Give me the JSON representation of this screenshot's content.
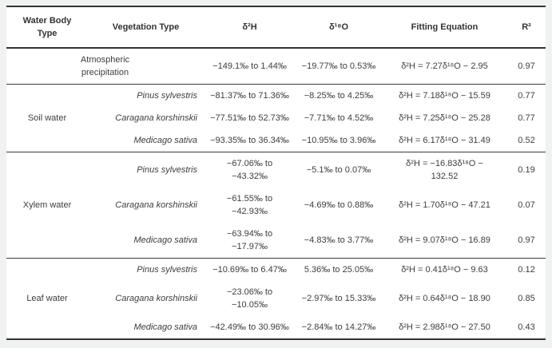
{
  "table": {
    "headers": {
      "water_body": "Water Body\nType",
      "vegetation": "Vegetation Type",
      "d2h": "δ²H",
      "d18o": "δ¹⁸O",
      "equation": "Fitting Equation",
      "r2": "R²"
    },
    "atmospheric": {
      "label": "Atmospheric\nprecipitation",
      "d2h": "−149.1‰ to 1.44‰",
      "d18o": "−19.77‰ to 0.53‰",
      "equation": "δ²H = 7.27δ¹⁸O − 2.95",
      "r2": "0.97"
    },
    "sections": [
      {
        "water_body": "Soil water",
        "rows": [
          {
            "vegetation": "Pinus sylvestris",
            "d2h": "−81.37‰ to 71.36‰",
            "d18o": "−8.25‰ to 4.25‰",
            "equation": "δ²H = 7.18δ¹⁸O − 15.59",
            "r2": "0.77"
          },
          {
            "vegetation": "Caragana korshinskii",
            "d2h": "−77.51‰ to 52.73‰",
            "d18o": "−7.71‰ to 4.52‰",
            "equation": "δ²H = 7.25δ¹⁸O − 25.28",
            "r2": "0.77"
          },
          {
            "vegetation": "Medicago sativa",
            "d2h": "−93.35‰ to 36.34‰",
            "d18o": "−10.95‰ to 3.96‰",
            "equation": "δ²H = 6.17δ¹⁸O − 31.49",
            "r2": "0.52"
          }
        ]
      },
      {
        "water_body": "Xylem water",
        "rows": [
          {
            "vegetation": "Pinus sylvestris",
            "d2h": "−67.06‰ to\n−43.32‰",
            "d18o": "−5.1‰ to 0.07‰",
            "equation": "δ²H = −16.83δ¹⁸O −\n132.52",
            "r2": "0.19"
          },
          {
            "vegetation": "Caragana korshinskii",
            "d2h": "−61.55‰ to\n−42.93‰",
            "d18o": "−4.69‰ to 0.88‰",
            "equation": "δ²H = 1.70δ¹⁸O − 47.21",
            "r2": "0.07"
          },
          {
            "vegetation": "Medicago sativa",
            "d2h": "−63.94‰ to\n−17.97‰",
            "d18o": "−4.83‰ to 3.77‰",
            "equation": "δ²H = 9.07δ¹⁸O − 16.89",
            "r2": "0.97"
          }
        ]
      },
      {
        "water_body": "Leaf water",
        "rows": [
          {
            "vegetation": "Pinus sylvestris",
            "d2h": "−10.69‰ to 6.47‰",
            "d18o": "5.36‰ to 25.05‰",
            "equation": "δ²H = 0.41δ¹⁸O − 9.63",
            "r2": "0.12"
          },
          {
            "vegetation": "Caragana korshinskii",
            "d2h": "−23.06‰ to\n−10.05‰",
            "d18o": "−2.97‰ to 15.33‰",
            "equation": "δ²H = 0.64δ¹⁸O − 18.90",
            "r2": "0.85"
          },
          {
            "vegetation": "Medicago sativa",
            "d2h": "−42.49‰ to 30.96‰",
            "d18o": "−2.84‰ to 14.27‰",
            "equation": "δ²H = 2.98δ¹⁸O − 27.50",
            "r2": "0.43"
          }
        ]
      }
    ]
  }
}
